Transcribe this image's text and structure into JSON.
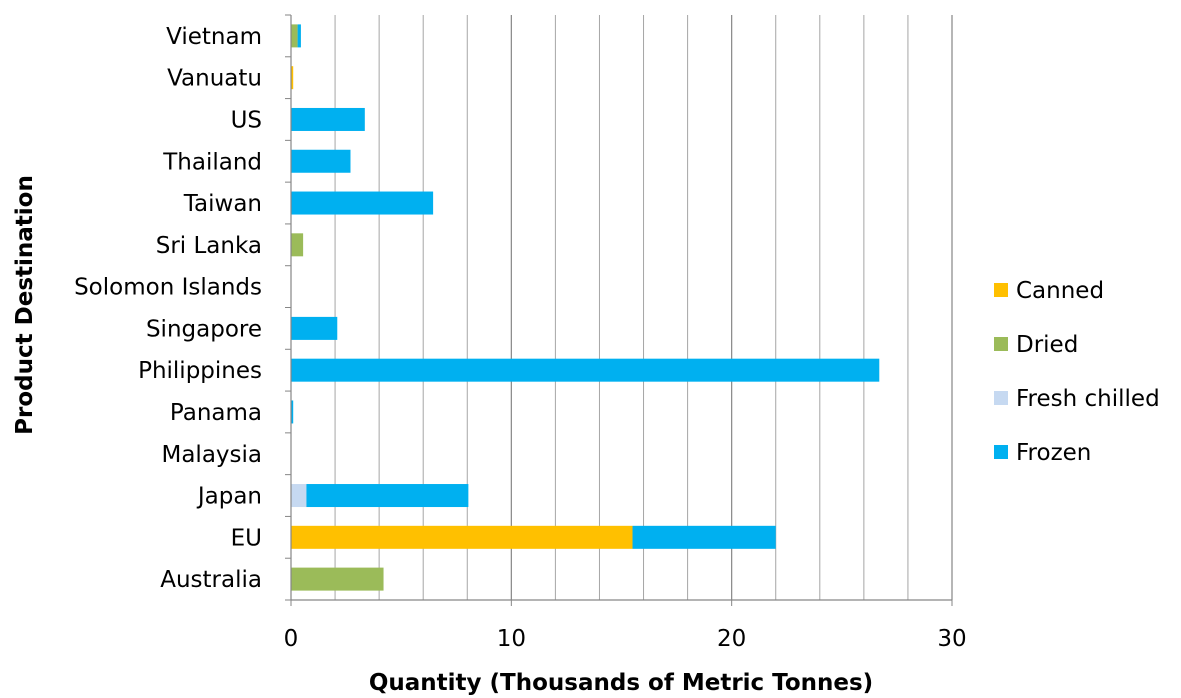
{
  "chart_data": {
    "type": "bar",
    "orientation": "horizontal",
    "stacked": true,
    "title": "",
    "xlabel": "Quantity (Thousands of Metric Tonnes)",
    "ylabel": "Product Destination",
    "xlim": [
      0,
      30
    ],
    "x_major_ticks": [
      0,
      10,
      20,
      30
    ],
    "x_minor_gridline_step": 2,
    "grid": "vertical",
    "legend_position": "right",
    "categories": [
      "Vietnam",
      "Vanuatu",
      "US",
      "Thailand",
      "Taiwan",
      "Sri Lanka",
      "Solomon Islands",
      "Singapore",
      "Philippines",
      "Panama",
      "Malaysia",
      "Japan",
      "EU",
      "Australia"
    ],
    "series": [
      {
        "name": "Canned",
        "color": "#FFC000",
        "values": [
          0,
          0.1,
          0,
          0,
          0,
          0,
          0,
          0,
          0,
          0,
          0,
          0,
          15.5,
          0
        ]
      },
      {
        "name": "Dried",
        "color": "#9BBB59",
        "values": [
          0.3,
          0,
          0,
          0,
          0,
          0.55,
          0,
          0,
          0,
          0,
          0,
          0,
          0,
          4.2
        ]
      },
      {
        "name": "Fresh chilled",
        "color": "#C6D9F1",
        "values": [
          0,
          0,
          0,
          0,
          0,
          0,
          0,
          0,
          0,
          0,
          0,
          0.7,
          0,
          0
        ]
      },
      {
        "name": "Frozen",
        "color": "#00B0F0",
        "values": [
          0.15,
          0,
          3.35,
          2.7,
          6.45,
          0,
          0,
          2.1,
          26.7,
          0.1,
          0,
          7.35,
          6.5,
          0
        ]
      }
    ]
  }
}
